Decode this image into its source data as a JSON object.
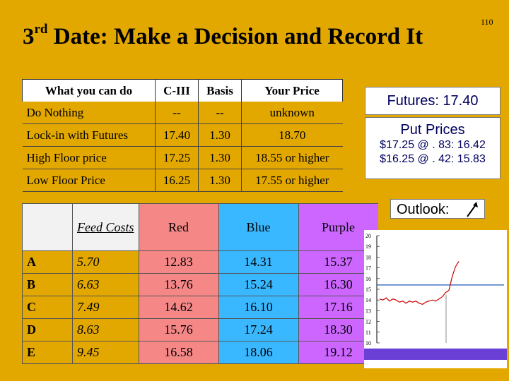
{
  "page_number": "110",
  "title": {
    "sup": "rd",
    "pre": "3",
    "main": " Date:  Make a Decision and Record It"
  },
  "choices": {
    "headers": [
      "What you can do",
      "C-III",
      "Basis",
      "Your Price"
    ],
    "rows": [
      [
        "Do Nothing",
        "--",
        "--",
        "unknown"
      ],
      [
        "Lock-in with Futures",
        "17.40",
        "1.30",
        "18.70"
      ],
      [
        "High Floor price",
        "17.25",
        "1.30",
        "18.55 or higher"
      ],
      [
        "Low Floor Price",
        "16.25",
        "1.30",
        "17.55 or higher"
      ]
    ]
  },
  "feed": {
    "headers": [
      "",
      "Feed Costs",
      "Red",
      "Blue",
      "Purple"
    ],
    "rows": [
      [
        "A",
        "5.70",
        "12.83",
        "14.31",
        "15.37"
      ],
      [
        "B",
        "6.63",
        "13.76",
        "15.24",
        "16.30"
      ],
      [
        "C",
        "7.49",
        "14.62",
        "16.10",
        "17.16"
      ],
      [
        "D",
        "8.63",
        "15.76",
        "17.24",
        "18.30"
      ],
      [
        "E",
        "9.45",
        "16.58",
        "18.06",
        "19.12"
      ]
    ]
  },
  "futures_box": "Futures:  17.40",
  "put_prices": {
    "heading": "Put Prices",
    "lines": [
      "$17.25 @ . 83: 16.42",
      "$16.25 @ . 42: 15.83"
    ]
  },
  "outlook_label": "Outlook:",
  "chart_data": {
    "type": "line",
    "y_ticks": [
      "20",
      "19",
      "18",
      "17",
      "16",
      "15",
      "14",
      "13",
      "12",
      "11",
      "10"
    ],
    "ylim": [
      10,
      20
    ],
    "reference_line": 15.4,
    "series": [
      {
        "values": [
          14.1,
          14.0,
          14.2,
          13.9,
          14.1,
          14.0,
          13.8,
          13.9,
          13.7,
          13.9,
          13.8,
          13.9,
          13.7,
          13.6,
          13.8,
          13.9,
          14.0,
          13.9,
          14.1,
          14.3,
          14.7,
          14.9,
          16.2,
          17.1,
          17.6
        ]
      }
    ],
    "colors": {
      "line": "#cc0000",
      "reference": "#4472c4",
      "bar": "#6a3fd6"
    }
  }
}
